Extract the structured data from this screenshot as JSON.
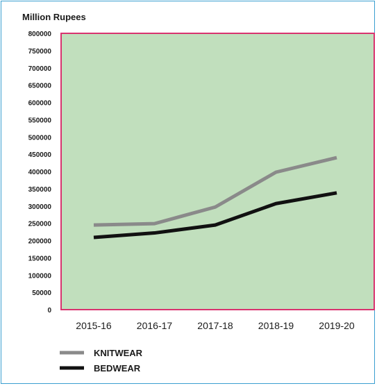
{
  "chart_data": {
    "type": "line",
    "unit_label": "Million Rupees",
    "categories": [
      "2015-16",
      "2016-17",
      "2017-18",
      "2018-19",
      "2019-20"
    ],
    "ylim": [
      0,
      800000
    ],
    "yticks": [
      0,
      50000,
      100000,
      150000,
      200000,
      250000,
      300000,
      350000,
      400000,
      450000,
      500000,
      550000,
      600000,
      650000,
      700000,
      750000,
      800000
    ],
    "grid": false,
    "plot_background": "#c1dfbd",
    "plot_border_color": "#d9326f",
    "legend_position": "bottom-left",
    "series": [
      {
        "name": "KNITWEAR",
        "color": "#8a8a8a",
        "values": [
          245000,
          249000,
          297000,
          398000,
          440000
        ]
      },
      {
        "name": "BEDWEAR",
        "color": "#111111",
        "values": [
          209000,
          222000,
          245000,
          307000,
          338000
        ]
      }
    ]
  }
}
